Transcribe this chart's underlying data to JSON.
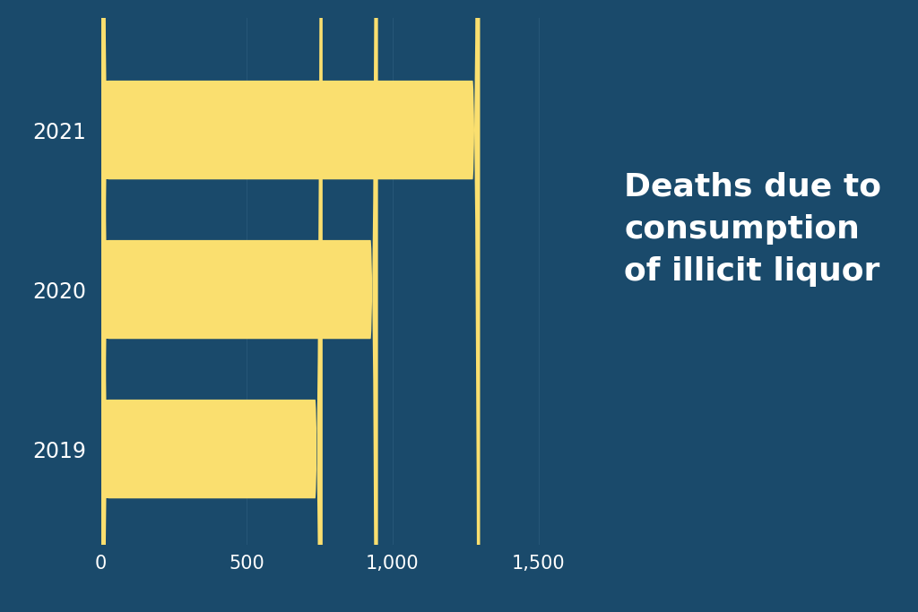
{
  "categories": [
    "2021",
    "2020",
    "2019"
  ],
  "values": [
    1300,
    950,
    760
  ],
  "bar_color": "#FADF6F",
  "background_color": "#1A4A6B",
  "text_color": "#FFFFFF",
  "title_text": "Deaths due to\nconsumption\nof illicit liquor",
  "xlim": [
    0,
    1700
  ],
  "xticks": [
    0,
    500,
    1000,
    1500
  ],
  "xtick_labels": [
    "0",
    "500",
    "1,000",
    "1,500"
  ],
  "grid_color": "#2A5A7B",
  "ylabel_fontsize": 17,
  "xlabel_fontsize": 15,
  "title_fontsize": 26,
  "bar_height": 0.62,
  "rounding_size": 25
}
